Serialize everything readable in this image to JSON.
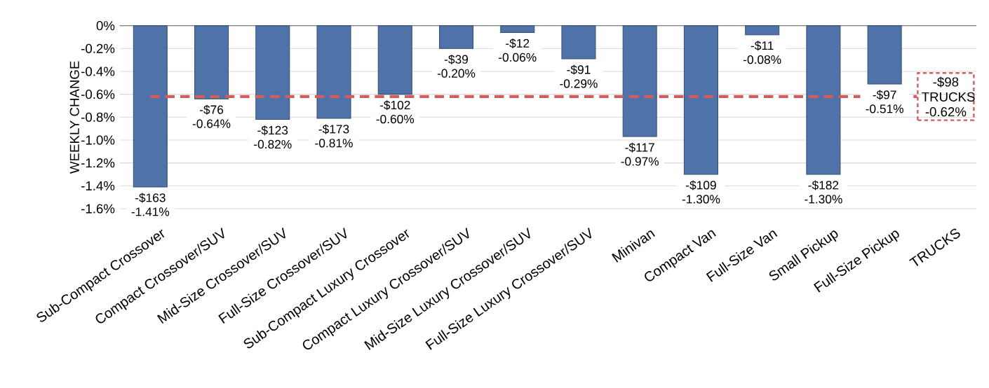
{
  "chart_data": {
    "type": "bar",
    "ylabel": "WEEKLY CHANGE",
    "categories": [
      "Sub-Compact Crossover",
      "Compact Crossover/SUV",
      "Mid-Size Crossover/SUV",
      "Full-Size Crossover/SUV",
      "Sub-Compact Luxury Crossover",
      "Compact Luxury Crossover/SUV",
      "Mid-Size Luxury Crossover/SUV",
      "Full-Size Luxury Crossover/SUV",
      "Minivan",
      "Compact Van",
      "Full-Size Van",
      "Small Pickup",
      "Full-Size Pickup",
      "TRUCKS"
    ],
    "values": [
      -1.41,
      -0.64,
      -0.82,
      -0.81,
      -0.6,
      -0.2,
      -0.06,
      -0.29,
      -0.97,
      -1.3,
      -0.08,
      -1.3,
      -0.51,
      null
    ],
    "value_labels": [
      "-$163 -1.41%",
      "-$76 -0.64%",
      "-$123 -0.82%",
      "-$173 -0.81%",
      "-$102 -0.60%",
      "-$39 -0.20%",
      "-$12 -0.06%",
      "-$91 -0.29%",
      "-$117 -0.97%",
      "-$109 -1.30%",
      "-$11 -0.08%",
      "-$182 -1.30%",
      "-$97 -0.51%",
      null
    ],
    "color": "#4f73a8",
    "ylim": [
      -1.6,
      0
    ],
    "yticks": [
      {
        "value": -1.6,
        "label": "-1.6%"
      },
      {
        "value": -1.4,
        "label": "-1.4%"
      },
      {
        "value": -1.2,
        "label": "-1.2%"
      },
      {
        "value": -1.0,
        "label": "-1.0%"
      },
      {
        "value": -0.8,
        "label": "-0.8%"
      },
      {
        "value": -0.6,
        "label": "-0.6%"
      },
      {
        "value": -0.4,
        "label": "-0.4%"
      },
      {
        "value": -0.2,
        "label": "-0.2%"
      },
      {
        "value": 0,
        "label": "0%"
      }
    ],
    "grid": "y",
    "ref_lines": [
      {
        "axis": "y",
        "value": -0.62,
        "label": "-$98 TRUCKS -0.62%",
        "color": "#cf5f5f",
        "line_style": "dashed"
      }
    ]
  }
}
